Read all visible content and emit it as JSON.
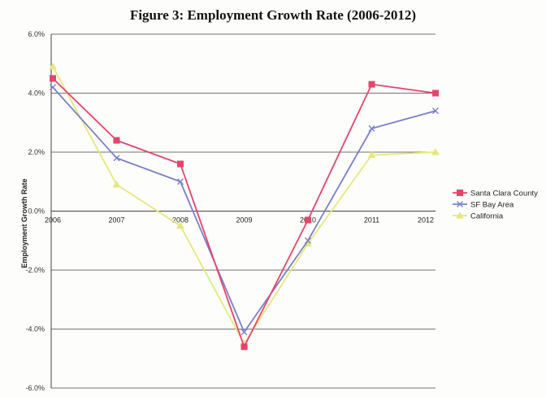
{
  "chart_data": {
    "type": "line",
    "title": "Figure 3: Employment Growth Rate (2006-2012)",
    "xlabel": "",
    "ylabel": "Employment Growth Rate",
    "x": [
      "2006",
      "2007",
      "2008",
      "2009",
      "2010",
      "2011",
      "2012"
    ],
    "ylim": [
      -6.0,
      6.0
    ],
    "yticks": [
      6.0,
      4.0,
      2.0,
      0.0,
      -2.0,
      -4.0,
      -6.0
    ],
    "ytick_labels": [
      "6.0%",
      "4.0%",
      "2.0%",
      "0.0%",
      "-2.0%",
      "-4.0%",
      "-6.0%"
    ],
    "grid": true,
    "legend_position": "right",
    "series": [
      {
        "name": "Santa Clara County",
        "color": "#e8436a",
        "marker": "square",
        "values": [
          4.5,
          2.4,
          1.6,
          -4.6,
          -0.3,
          4.3,
          4.0
        ]
      },
      {
        "name": "SF Bay Area",
        "color": "#7b7fcc",
        "marker": "x",
        "values": [
          4.2,
          1.8,
          1.0,
          -4.1,
          -1.0,
          2.8,
          3.4
        ]
      },
      {
        "name": "California",
        "color": "#e6e87a",
        "marker": "triangle",
        "values": [
          4.9,
          0.9,
          -0.5,
          -4.5,
          -1.1,
          1.9,
          2.0
        ]
      }
    ]
  }
}
